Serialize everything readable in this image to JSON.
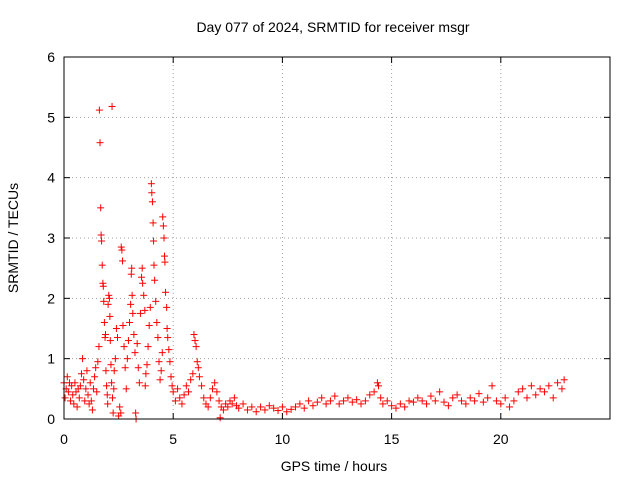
{
  "chart_data": {
    "type": "scatter",
    "title": "Day 077 of 2024, SRMTID for receiver msgr",
    "xlabel": "GPS time / hours",
    "ylabel": "SRMTID / TECUs",
    "xlim": [
      0,
      25
    ],
    "ylim": [
      0,
      6
    ],
    "xticks": [
      0,
      5,
      10,
      15,
      20
    ],
    "xtick_labels": [
      "0",
      "5",
      "10",
      "15",
      "20"
    ],
    "yticks": [
      0,
      1,
      2,
      3,
      4,
      5,
      6
    ],
    "ytick_labels": [
      "0",
      "1",
      "2",
      "3",
      "4",
      "5",
      "6"
    ],
    "grid": true,
    "marker": "+",
    "series": [
      {
        "name": "msgr",
        "color": "#ff0000",
        "points": [
          [
            0.0,
            0.6
          ],
          [
            0.05,
            0.35
          ],
          [
            0.1,
            0.5
          ],
          [
            0.15,
            0.7
          ],
          [
            0.2,
            0.45
          ],
          [
            0.25,
            0.6
          ],
          [
            0.3,
            0.3
          ],
          [
            0.35,
            0.55
          ],
          [
            0.4,
            0.4
          ],
          [
            0.45,
            0.25
          ],
          [
            0.5,
            0.6
          ],
          [
            0.55,
            0.45
          ],
          [
            0.6,
            0.2
          ],
          [
            0.65,
            0.5
          ],
          [
            0.7,
            0.35
          ],
          [
            0.75,
            0.55
          ],
          [
            0.8,
            0.75
          ],
          [
            0.85,
            1.0
          ],
          [
            0.9,
            0.65
          ],
          [
            0.95,
            0.3
          ],
          [
            1.0,
            0.5
          ],
          [
            1.05,
            0.8
          ],
          [
            1.1,
            0.4
          ],
          [
            1.15,
            0.25
          ],
          [
            1.2,
            0.6
          ],
          [
            1.25,
            0.3
          ],
          [
            1.3,
            0.15
          ],
          [
            1.35,
            0.5
          ],
          [
            1.4,
            0.7
          ],
          [
            1.45,
            0.85
          ],
          [
            1.5,
            0.45
          ],
          [
            1.55,
            0.95
          ],
          [
            1.6,
            1.2
          ],
          [
            1.62,
            5.12
          ],
          [
            1.65,
            4.58
          ],
          [
            1.68,
            3.5
          ],
          [
            1.7,
            3.05
          ],
          [
            1.72,
            2.95
          ],
          [
            1.75,
            2.55
          ],
          [
            1.78,
            2.25
          ],
          [
            1.8,
            2.2
          ],
          [
            1.82,
            1.95
          ],
          [
            1.85,
            1.6
          ],
          [
            1.88,
            1.35
          ],
          [
            1.9,
            1.4
          ],
          [
            1.92,
            0.8
          ],
          [
            1.95,
            0.55
          ],
          [
            1.98,
            0.4
          ],
          [
            2.0,
            0.25
          ],
          [
            2.02,
            1.9
          ],
          [
            2.05,
            2.05
          ],
          [
            2.08,
            2.0
          ],
          [
            2.1,
            1.7
          ],
          [
            2.12,
            1.3
          ],
          [
            2.15,
            0.9
          ],
          [
            2.18,
            0.6
          ],
          [
            2.2,
            5.18
          ],
          [
            2.22,
            0.35
          ],
          [
            2.25,
            0.1
          ],
          [
            2.28,
            0.5
          ],
          [
            2.3,
            0.8
          ],
          [
            2.35,
            1.0
          ],
          [
            2.4,
            1.5
          ],
          [
            2.45,
            1.35
          ],
          [
            2.5,
            0.05
          ],
          [
            2.55,
            0.2
          ],
          [
            2.6,
            0.1
          ],
          [
            2.62,
            2.85
          ],
          [
            2.65,
            2.8
          ],
          [
            2.68,
            2.62
          ],
          [
            2.7,
            1.55
          ],
          [
            2.75,
            1.2
          ],
          [
            2.8,
            0.85
          ],
          [
            2.85,
            0.5
          ],
          [
            2.9,
            1.0
          ],
          [
            2.95,
            1.3
          ],
          [
            3.0,
            1.6
          ],
          [
            3.05,
            1.9
          ],
          [
            3.08,
            2.4
          ],
          [
            3.1,
            2.5
          ],
          [
            3.12,
            2.05
          ],
          [
            3.15,
            1.75
          ],
          [
            3.2,
            1.4
          ],
          [
            3.25,
            1.1
          ],
          [
            3.28,
            0.1
          ],
          [
            3.3,
            0.0
          ],
          [
            3.35,
            1.25
          ],
          [
            3.4,
            0.85
          ],
          [
            3.45,
            0.6
          ],
          [
            3.5,
            1.75
          ],
          [
            3.55,
            2.35
          ],
          [
            3.58,
            2.5
          ],
          [
            3.6,
            2.25
          ],
          [
            3.65,
            2.05
          ],
          [
            3.7,
            1.8
          ],
          [
            3.72,
            0.55
          ],
          [
            3.75,
            0.75
          ],
          [
            3.8,
            0.9
          ],
          [
            3.85,
            1.2
          ],
          [
            3.9,
            1.55
          ],
          [
            3.95,
            1.85
          ],
          [
            4.0,
            3.9
          ],
          [
            4.02,
            3.75
          ],
          [
            4.05,
            3.6
          ],
          [
            4.08,
            3.25
          ],
          [
            4.1,
            2.95
          ],
          [
            4.12,
            2.55
          ],
          [
            4.15,
            2.3
          ],
          [
            4.2,
            1.95
          ],
          [
            4.25,
            1.6
          ],
          [
            4.3,
            1.35
          ],
          [
            4.35,
            0.95
          ],
          [
            4.4,
            0.65
          ],
          [
            4.45,
            0.8
          ],
          [
            4.5,
            1.1
          ],
          [
            4.52,
            3.35
          ],
          [
            4.55,
            3.2
          ],
          [
            4.58,
            3.0
          ],
          [
            4.6,
            2.7
          ],
          [
            4.62,
            2.6
          ],
          [
            4.65,
            2.1
          ],
          [
            4.7,
            1.85
          ],
          [
            4.72,
            1.5
          ],
          [
            4.75,
            1.35
          ],
          [
            4.8,
            1.15
          ],
          [
            4.85,
            0.95
          ],
          [
            4.9,
            0.7
          ],
          [
            4.95,
            0.55
          ],
          [
            5.0,
            0.45
          ],
          [
            5.1,
            0.3
          ],
          [
            5.2,
            0.5
          ],
          [
            5.3,
            0.35
          ],
          [
            5.4,
            0.25
          ],
          [
            5.5,
            0.4
          ],
          [
            5.6,
            0.55
          ],
          [
            5.7,
            0.45
          ],
          [
            5.8,
            0.65
          ],
          [
            5.9,
            0.75
          ],
          [
            5.95,
            1.4
          ],
          [
            6.0,
            1.3
          ],
          [
            6.05,
            1.2
          ],
          [
            6.1,
            0.95
          ],
          [
            6.15,
            0.85
          ],
          [
            6.2,
            0.7
          ],
          [
            6.3,
            0.55
          ],
          [
            6.4,
            0.35
          ],
          [
            6.5,
            0.25
          ],
          [
            6.6,
            0.2
          ],
          [
            6.7,
            0.35
          ],
          [
            6.8,
            0.5
          ],
          [
            6.9,
            0.6
          ],
          [
            7.0,
            0.45
          ],
          [
            7.1,
            0.3
          ],
          [
            7.15,
            0.02
          ],
          [
            7.2,
            0.2
          ],
          [
            7.3,
            0.15
          ],
          [
            7.4,
            0.25
          ],
          [
            7.5,
            0.2
          ],
          [
            7.6,
            0.3
          ],
          [
            7.7,
            0.25
          ],
          [
            7.8,
            0.35
          ],
          [
            7.9,
            0.22
          ],
          [
            8.0,
            0.18
          ],
          [
            8.2,
            0.25
          ],
          [
            8.4,
            0.15
          ],
          [
            8.6,
            0.2
          ],
          [
            8.8,
            0.12
          ],
          [
            9.0,
            0.2
          ],
          [
            9.2,
            0.15
          ],
          [
            9.4,
            0.22
          ],
          [
            9.6,
            0.18
          ],
          [
            9.8,
            0.14
          ],
          [
            10.0,
            0.2
          ],
          [
            10.2,
            0.12
          ],
          [
            10.4,
            0.16
          ],
          [
            10.6,
            0.2
          ],
          [
            10.8,
            0.25
          ],
          [
            11.0,
            0.18
          ],
          [
            11.2,
            0.3
          ],
          [
            11.4,
            0.22
          ],
          [
            11.6,
            0.28
          ],
          [
            11.8,
            0.35
          ],
          [
            12.0,
            0.25
          ],
          [
            12.2,
            0.3
          ],
          [
            12.4,
            0.38
          ],
          [
            12.6,
            0.25
          ],
          [
            12.8,
            0.3
          ],
          [
            13.0,
            0.35
          ],
          [
            13.2,
            0.28
          ],
          [
            13.4,
            0.32
          ],
          [
            13.6,
            0.25
          ],
          [
            13.8,
            0.3
          ],
          [
            14.0,
            0.4
          ],
          [
            14.2,
            0.45
          ],
          [
            14.35,
            0.6
          ],
          [
            14.4,
            0.55
          ],
          [
            14.5,
            0.35
          ],
          [
            14.6,
            0.25
          ],
          [
            14.8,
            0.3
          ],
          [
            15.0,
            0.22
          ],
          [
            15.2,
            0.18
          ],
          [
            15.4,
            0.25
          ],
          [
            15.6,
            0.2
          ],
          [
            15.8,
            0.3
          ],
          [
            16.0,
            0.28
          ],
          [
            16.2,
            0.35
          ],
          [
            16.4,
            0.3
          ],
          [
            16.6,
            0.25
          ],
          [
            16.8,
            0.38
          ],
          [
            17.0,
            0.3
          ],
          [
            17.2,
            0.45
          ],
          [
            17.4,
            0.28
          ],
          [
            17.6,
            0.22
          ],
          [
            17.8,
            0.35
          ],
          [
            18.0,
            0.4
          ],
          [
            18.2,
            0.3
          ],
          [
            18.4,
            0.25
          ],
          [
            18.6,
            0.35
          ],
          [
            18.8,
            0.3
          ],
          [
            19.0,
            0.42
          ],
          [
            19.2,
            0.28
          ],
          [
            19.4,
            0.35
          ],
          [
            19.6,
            0.55
          ],
          [
            19.8,
            0.3
          ],
          [
            20.0,
            0.25
          ],
          [
            20.2,
            0.35
          ],
          [
            20.4,
            0.2
          ],
          [
            20.6,
            0.3
          ],
          [
            20.8,
            0.45
          ],
          [
            21.0,
            0.5
          ],
          [
            21.2,
            0.35
          ],
          [
            21.4,
            0.55
          ],
          [
            21.6,
            0.4
          ],
          [
            21.8,
            0.5
          ],
          [
            22.0,
            0.45
          ],
          [
            22.2,
            0.55
          ],
          [
            22.4,
            0.35
          ],
          [
            22.6,
            0.6
          ],
          [
            22.8,
            0.5
          ],
          [
            22.9,
            0.65
          ]
        ]
      }
    ]
  }
}
